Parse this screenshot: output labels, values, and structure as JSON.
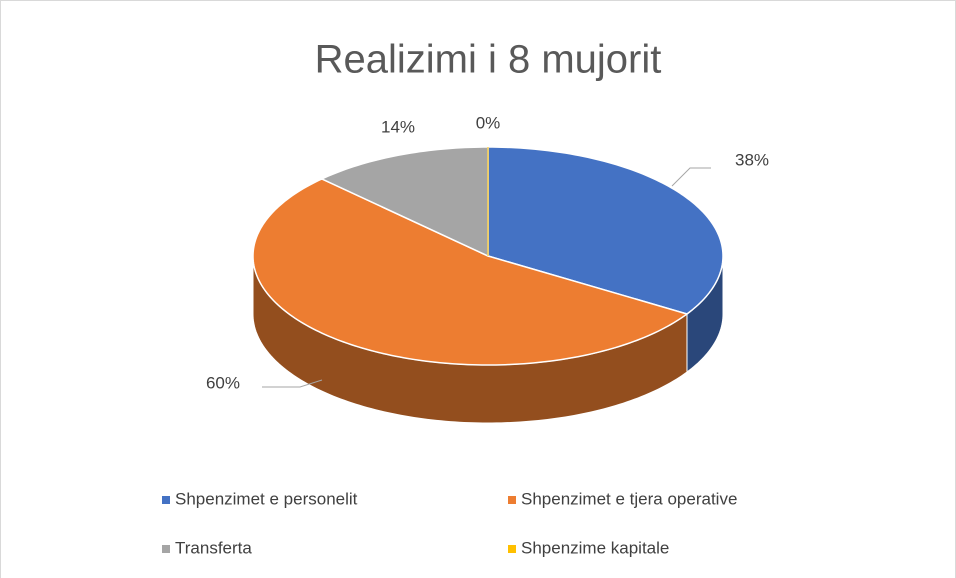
{
  "chart_data": {
    "type": "pie3d",
    "title": "Realizimi i 8 mujorit",
    "categories": [
      "Shpenzimet e personelit",
      "Shpenzimet e tjera operative",
      "Transferta",
      "Shpenzime kapitale"
    ],
    "values": [
      38,
      60,
      14,
      0
    ],
    "value_labels": [
      "38%",
      "60%",
      "14%",
      "0%"
    ],
    "colors": [
      "#4472c4",
      "#ed7d31",
      "#a5a5a5",
      "#ffc000"
    ],
    "legend": "bottom"
  }
}
